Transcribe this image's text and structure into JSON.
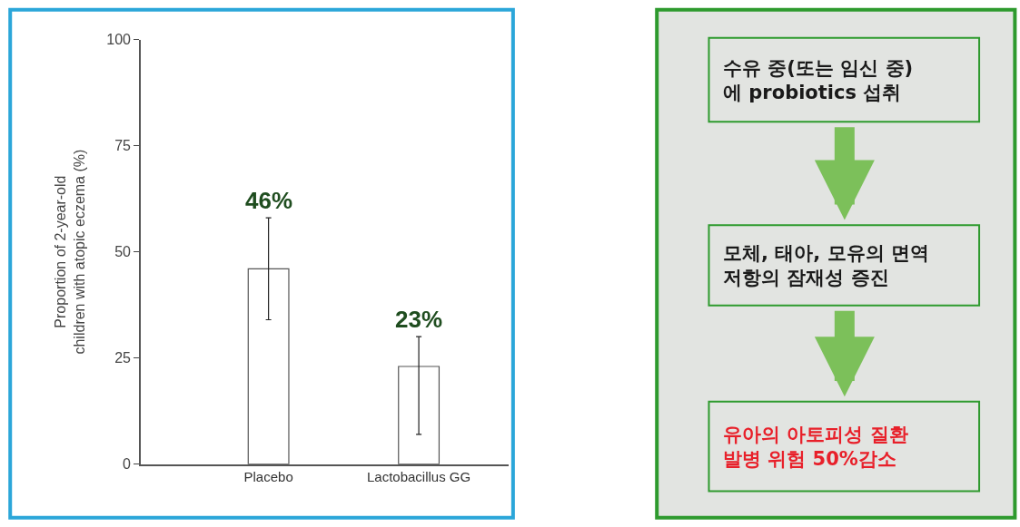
{
  "chart_data": [
    {
      "type": "bar",
      "ylabel": "Proportion of 2-year-old\nchildren with atopic eczema (%)",
      "categories": [
        "Placebo",
        "Lactobacillus GG"
      ],
      "values": [
        46,
        23
      ],
      "color": "#ffffff",
      "errors": [
        [
          34,
          58
        ],
        [
          7,
          30
        ]
      ],
      "value_labels": [
        "46%",
        "23%"
      ],
      "ylim": [
        0,
        100
      ],
      "yticks": [
        0,
        25,
        50,
        75,
        100
      ]
    },
    {
      "type": "other",
      "annotations": [
        "수유 중(또는 임신 중)\n에 probiotics 섭취",
        "모체, 태아, 모유의 면역\n저항의 잠재성 증진",
        "유아의 아토피성 질환\n발병 위험 50%감소"
      ],
      "colors": [
        "#1a1a1a",
        "#1a1a1a",
        "#e8202a"
      ]
    }
  ]
}
